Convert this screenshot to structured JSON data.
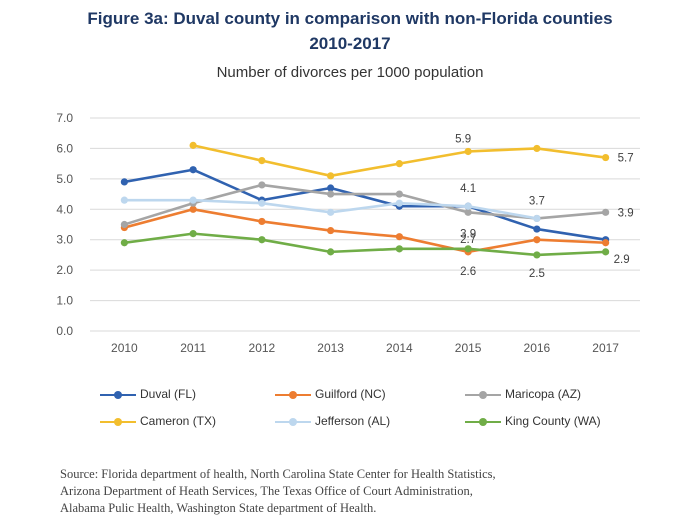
{
  "figure": {
    "title_line1": "Figure 3a: Duval county in comparison with non-Florida counties",
    "title_line2": "2010-2017",
    "subtitle": "Number of divorces per 1000 population"
  },
  "chart_data": {
    "type": "line",
    "title": "Figure 3a: Duval county in comparison with non-Florida counties 2010-2017",
    "subtitle": "Number of divorces per 1000 population",
    "xlabel": "",
    "ylabel": "",
    "x": [
      2010,
      2011,
      2012,
      2013,
      2014,
      2015,
      2016,
      2017
    ],
    "ylim": [
      0,
      7
    ],
    "yticks": [
      "0.0",
      "1.0",
      "2.0",
      "3.0",
      "4.0",
      "5.0",
      "6.0",
      "7.0"
    ],
    "grid": true,
    "legend_position": "bottom",
    "series": [
      {
        "name": "Duval (FL)",
        "color": "#3062b0",
        "values": [
          4.9,
          5.3,
          4.3,
          4.7,
          4.1,
          4.1,
          3.35,
          3.0
        ]
      },
      {
        "name": "Guilford (NC)",
        "color": "#ed7d31",
        "values": [
          3.4,
          4.0,
          3.6,
          3.3,
          3.1,
          2.6,
          3.0,
          2.9
        ]
      },
      {
        "name": "Maricopa (AZ)",
        "color": "#a5a5a5",
        "values": [
          3.5,
          4.2,
          4.8,
          4.5,
          4.5,
          3.9,
          3.7,
          3.9
        ]
      },
      {
        "name": "Cameron (TX)",
        "color": "#f2be2e",
        "values": [
          null,
          6.1,
          5.6,
          5.1,
          5.5,
          5.9,
          6.0,
          5.7
        ]
      },
      {
        "name": "Jefferson (AL)",
        "color": "#bdd7ee",
        "values": [
          4.3,
          4.3,
          4.2,
          3.9,
          4.2,
          4.1,
          3.7,
          null
        ]
      },
      {
        "name": "King County (WA)",
        "color": "#70ad47",
        "values": [
          2.9,
          3.2,
          3.0,
          2.6,
          2.7,
          2.7,
          2.5,
          2.6
        ]
      }
    ],
    "data_labels": [
      {
        "text": "5.9",
        "x": 2015,
        "y": 5.9
      },
      {
        "text": "5.7",
        "x": 2017,
        "y": 5.7
      },
      {
        "text": "4.1",
        "x": 2015,
        "y": 4.1
      },
      {
        "text": "3.9",
        "x": 2015,
        "y": 3.9
      },
      {
        "text": "3.7",
        "x": 2016,
        "y": 3.7
      },
      {
        "text": "3.9",
        "x": 2017,
        "y": 3.9
      },
      {
        "text": "2.7",
        "x": 2015,
        "y": 2.7
      },
      {
        "text": "2.6",
        "x": 2015,
        "y": 2.6
      },
      {
        "text": "2.5",
        "x": 2016,
        "y": 2.5
      },
      {
        "text": "2.9",
        "x": 2017,
        "y": 2.9
      }
    ]
  },
  "legend": {
    "items": [
      {
        "label": "Duval (FL)",
        "color": "#3062b0"
      },
      {
        "label": "Guilford (NC)",
        "color": "#ed7d31"
      },
      {
        "label": "Maricopa (AZ)",
        "color": "#a5a5a5"
      },
      {
        "label": "Cameron (TX)",
        "color": "#f2be2e"
      },
      {
        "label": "Jefferson (AL)",
        "color": "#bdd7ee"
      },
      {
        "label": "King County (WA)",
        "color": "#70ad47"
      }
    ]
  },
  "source": {
    "line1": "Source: Florida department of health, North Carolina State Center for Health Statistics,",
    "line2": "Arizona Department of Heath Services, The Texas Office of Court Administration,",
    "line3": "Alabama Pulic Health, Washington State department of Health."
  }
}
